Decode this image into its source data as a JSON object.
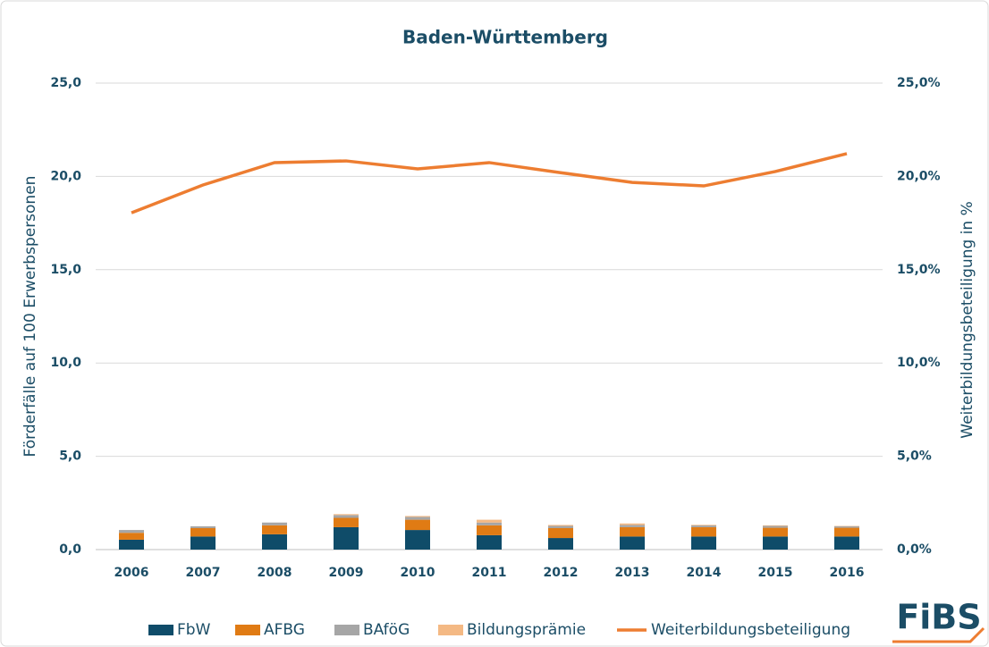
{
  "chart_data": {
    "type": "bar",
    "title": "Baden-Württemberg",
    "y_label": "Förderfälle auf 100 Erwerbspersonen",
    "y2_label": "Weiterbildungsbeteiligung in %",
    "logo": "FiBS",
    "stacked": true,
    "categories": [
      "2006",
      "2007",
      "2008",
      "2009",
      "2010",
      "2011",
      "2012",
      "2013",
      "2014",
      "2015",
      "2016"
    ],
    "series": [
      {
        "name": "FbW",
        "color": "#0f4c69",
        "values": [
          0.53,
          0.7,
          0.82,
          1.2,
          1.05,
          0.77,
          0.62,
          0.7,
          0.7,
          0.7,
          0.7
        ]
      },
      {
        "name": "AFBG",
        "color": "#e07b14",
        "values": [
          0.37,
          0.45,
          0.48,
          0.5,
          0.55,
          0.53,
          0.53,
          0.5,
          0.5,
          0.47,
          0.47
        ]
      },
      {
        "name": "BAföG",
        "color": "#a6a6a6",
        "values": [
          0.15,
          0.1,
          0.15,
          0.15,
          0.15,
          0.15,
          0.12,
          0.12,
          0.1,
          0.1,
          0.08
        ]
      },
      {
        "name": "Bildungsprämie",
        "color": "#f4b984",
        "values": [
          0,
          0,
          0,
          0.05,
          0.05,
          0.15,
          0.05,
          0.08,
          0.03,
          0.03,
          0.02
        ]
      },
      {
        "name": "Weiterbildungsbeteiligung",
        "color": "#ed7d31",
        "type": "line",
        "axis": "y2",
        "values": [
          18.05,
          19.54,
          20.74,
          20.83,
          20.4,
          20.74,
          20.2,
          19.68,
          19.49,
          20.26,
          21.22
        ]
      }
    ],
    "ylim": [
      0,
      25
    ],
    "yticks": [
      {
        "value": 0,
        "label": "0,0"
      },
      {
        "value": 5,
        "label": "5,0"
      },
      {
        "value": 10,
        "label": "10,0"
      },
      {
        "value": 15,
        "label": "15,0"
      },
      {
        "value": 20,
        "label": "20,0"
      },
      {
        "value": 25,
        "label": "25,0"
      }
    ],
    "y2lim": [
      0,
      25
    ],
    "y2ticks": [
      {
        "value": 0,
        "label": "0,0%"
      },
      {
        "value": 5,
        "label": "5,0%"
      },
      {
        "value": 10,
        "label": "10,0%"
      },
      {
        "value": 15,
        "label": "15,0%"
      },
      {
        "value": 20,
        "label": "20,0%"
      },
      {
        "value": 25,
        "label": "25,0%"
      }
    ],
    "grid": true,
    "legend": "bottom"
  }
}
